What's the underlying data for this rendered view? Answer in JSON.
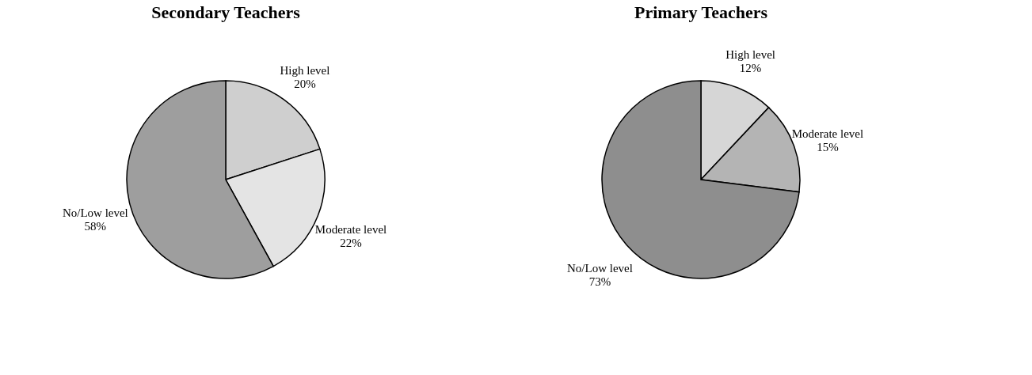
{
  "chart_data": [
    {
      "type": "pie",
      "title": "Secondary Teachers",
      "categories": [
        "High level",
        "Moderate level",
        "No/Low level"
      ],
      "values": [
        20,
        22,
        58
      ],
      "colors": [
        "#cfcfcf",
        "#e4e4e4",
        "#9e9e9e"
      ],
      "value_labels": [
        "20%",
        "22%",
        "58%"
      ],
      "legend": false
    },
    {
      "type": "pie",
      "title": "Primary Teachers",
      "categories": [
        "High level",
        "Moderate level",
        "No/Low level"
      ],
      "values": [
        12,
        15,
        73
      ],
      "colors": [
        "#d6d6d6",
        "#b4b4b4",
        "#8e8e8e"
      ],
      "value_labels": [
        "12%",
        "15%",
        "73%"
      ],
      "legend": false
    }
  ]
}
